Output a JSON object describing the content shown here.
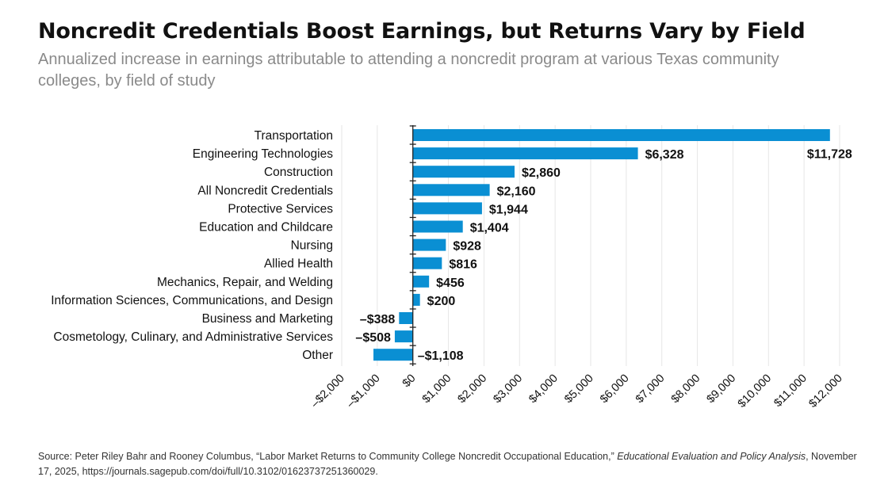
{
  "header": {
    "title": "Noncredit Credentials Boost Earnings, but Returns Vary by Field",
    "subtitle": "Annualized increase in earnings attributable to attending a noncredit program at various Texas community colleges, by field of study"
  },
  "source": {
    "prefix": "Source: Peter Riley Bahr and Rooney Columbus, “Labor Market Returns to Community College Noncredit Occupational Education,” ",
    "journal": "Educational Evaluation and Policy Analysis",
    "suffix": ", November 17, 2025, https://journals.sagepub.com/doi/full/10.3102/01623737251360029."
  },
  "chart_data": {
    "type": "bar",
    "orientation": "horizontal",
    "title": "Noncredit Credentials Boost Earnings, but Returns Vary by Field",
    "xlabel": "",
    "ylabel": "",
    "xlim": [
      -2000,
      12000
    ],
    "grid": true,
    "bar_color": "#0a8fd3",
    "categories": [
      "Transportation",
      "Engineering Technologies",
      "Construction",
      "All Noncredit Credentials",
      "Protective Services",
      "Education and Childcare",
      "Nursing",
      "Allied Health",
      "Mechanics, Repair, and Welding",
      "Information Sciences, Communications, and Design",
      "Business and Marketing",
      "Cosmetology, Culinary, and Administrative Services",
      "Other"
    ],
    "values": [
      11728,
      6328,
      2860,
      2160,
      1944,
      1404,
      928,
      816,
      456,
      200,
      -388,
      -508,
      -1108
    ],
    "data_labels": [
      "$11,728",
      "$6,328",
      "$2,860",
      "$2,160",
      "$1,944",
      "$1,404",
      "$928",
      "$816",
      "$456",
      "$200",
      "–$388",
      "–$508",
      "–$1,108"
    ],
    "x_ticks": [
      -2000,
      -1000,
      0,
      1000,
      2000,
      3000,
      4000,
      5000,
      6000,
      7000,
      8000,
      9000,
      10000,
      11000,
      12000
    ],
    "x_tick_labels": [
      "–$2,000",
      "–$1,000",
      "$0",
      "$1,000",
      "$2,000",
      "$3,000",
      "$4,000",
      "$5,000",
      "$6,000",
      "$7,000",
      "$8,000",
      "$9,000",
      "$10,000",
      "$11,000",
      "$12,000"
    ]
  }
}
